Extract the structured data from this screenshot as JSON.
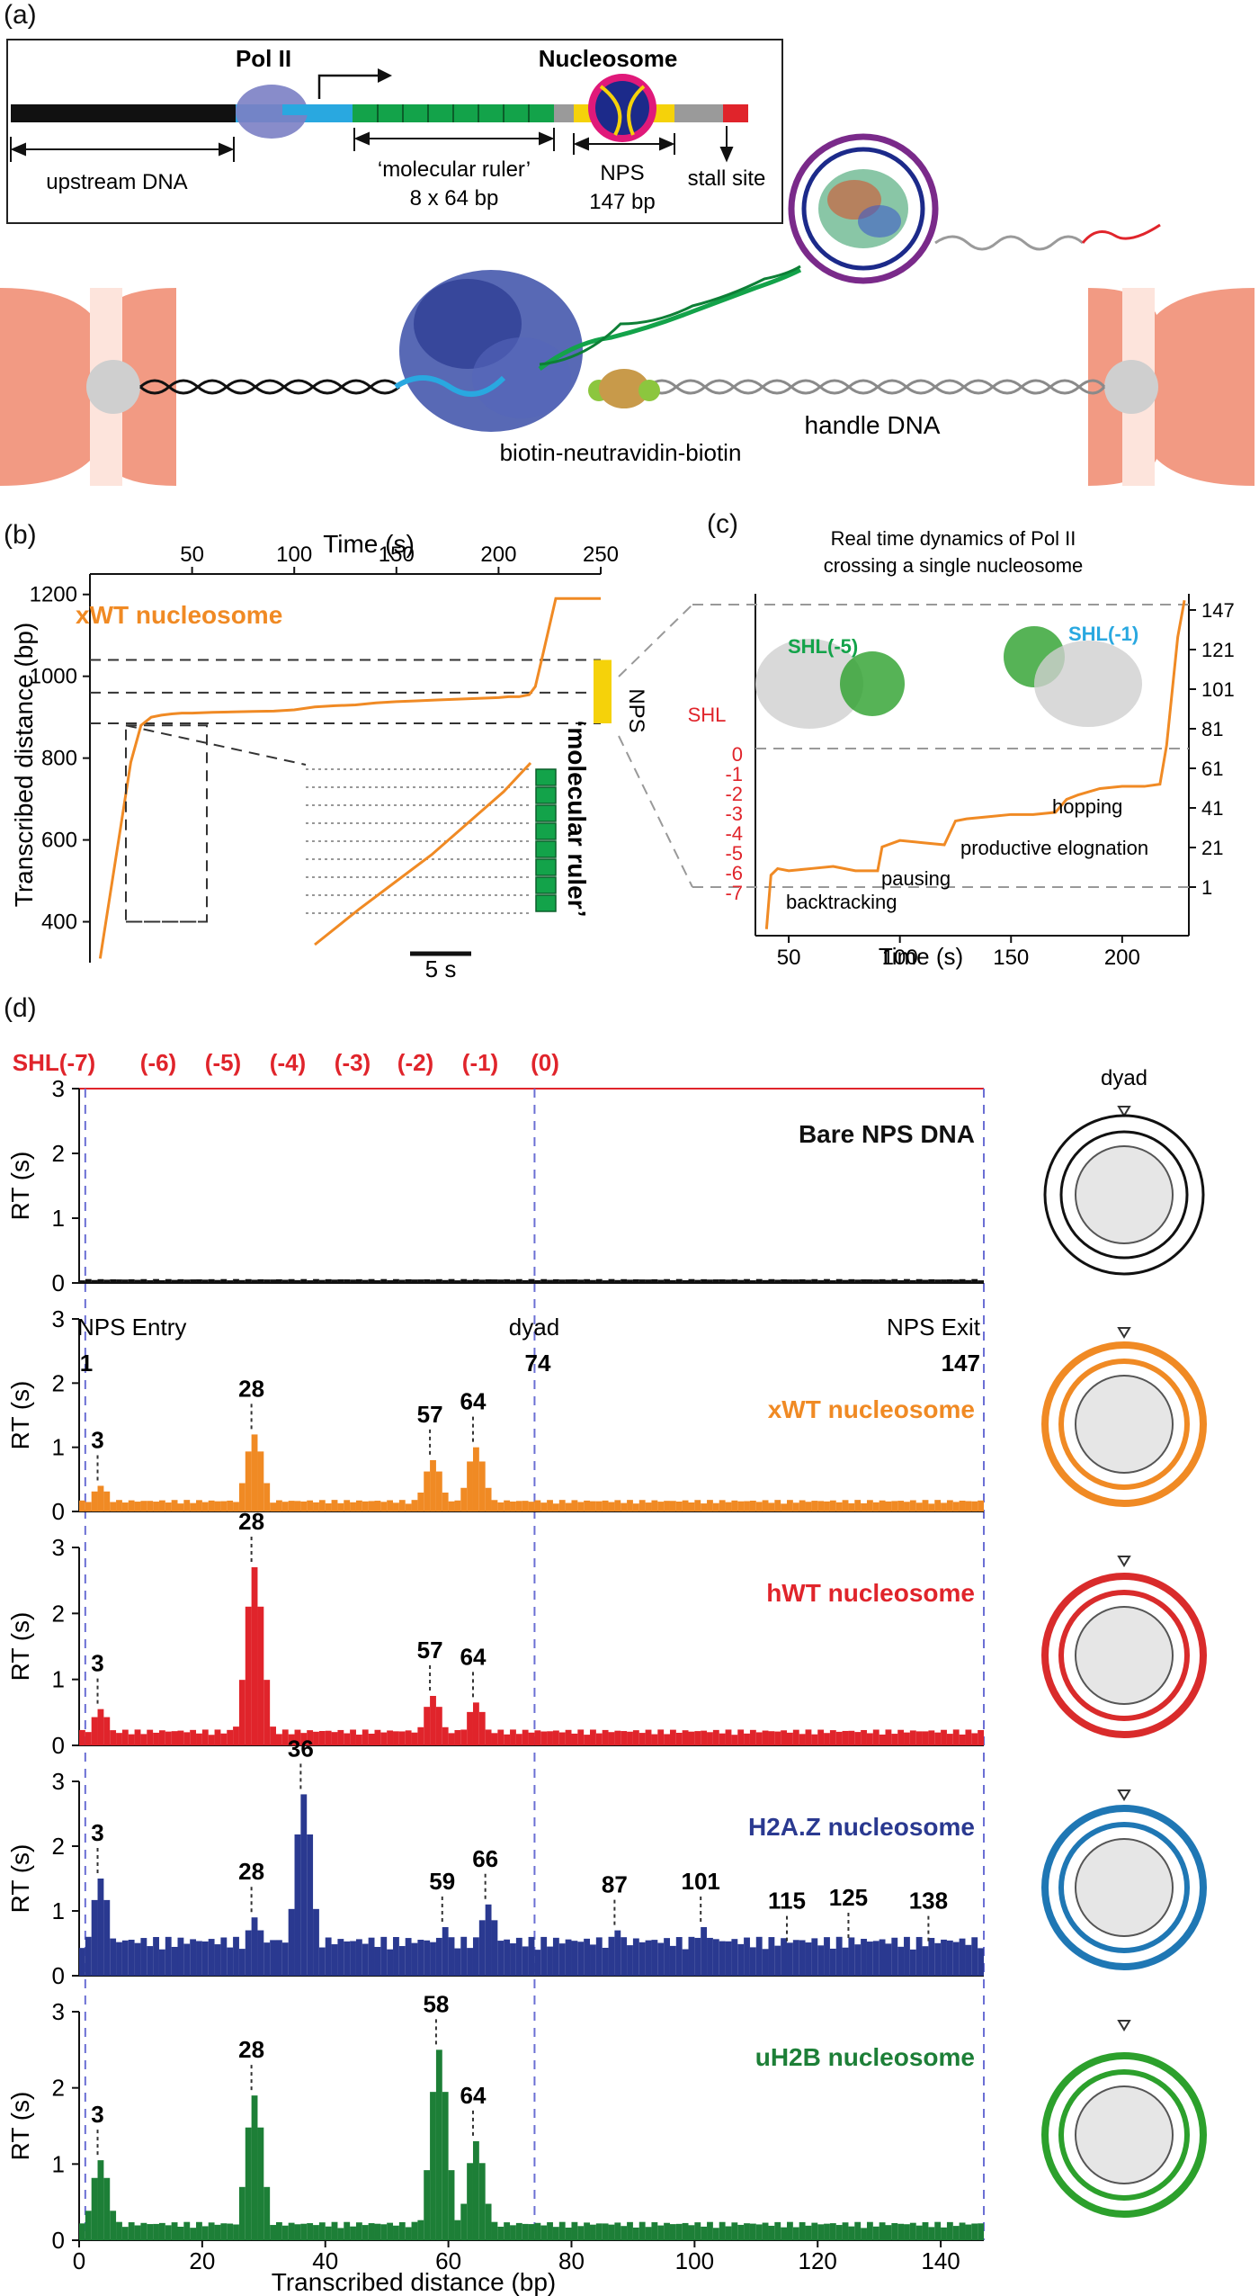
{
  "panels": {
    "a": "(a)",
    "b": "(b)",
    "c": "(c)",
    "d": "(d)"
  },
  "panel_a": {
    "pol2_label": "Pol II",
    "nucleosome_label": "Nucleosome",
    "upstream_dna": "upstream  DNA",
    "ruler_line1": "‘molecular ruler’",
    "ruler_line2": "8 x 64 bp",
    "nps_line1": "NPS",
    "nps_line2": "147 bp",
    "stall_site": "stall site",
    "biotin_label": "biotin-neutravidin-biotin",
    "handle_dna": "handle DNA",
    "colors": {
      "upstream": "#111111",
      "pol": "#7b7fc4",
      "blue": "#29a8e0",
      "ruler": "#13a34a",
      "nps": "#f5d20a",
      "gray": "#9a9a9a",
      "stall": "#e0242b",
      "trap": "#f29a83"
    }
  },
  "panel_b": {
    "xaxis_title": "Time (s)",
    "xticks": [
      "50",
      "100",
      "150",
      "200",
      "250"
    ],
    "yaxis_title": "Transcribed distance (bp)",
    "yticks": [
      "400",
      "600",
      "800",
      "1000",
      "1200"
    ],
    "series_label": "xWT nucleosome",
    "nps_tag": "NPS",
    "scale_bar": "5 s",
    "ruler_tag": "‘molecular ruler’",
    "trace_color": "#f08a24"
  },
  "panel_c": {
    "title_line1": "Real time dynamics of Pol II",
    "title_line2": "crossing a single nucleosome",
    "shl_header": "SHL",
    "shl_ticks": [
      "0",
      "-1",
      "-2",
      "-3",
      "-4",
      "-5",
      "-6",
      "-7"
    ],
    "right_ticks": [
      "147",
      "121",
      "101",
      "81",
      "61",
      "41",
      "21",
      "1"
    ],
    "xticks": [
      "50",
      "100",
      "150",
      "200"
    ],
    "xaxis_title": "Time (s)",
    "shl_m5": "SHL(-5)",
    "shl_m1": "SHL(-1)",
    "ann_backtracking": "backtracking",
    "ann_pausing": "pausing",
    "ann_productive": "productive elognation",
    "ann_hopping": "hopping"
  },
  "panel_d": {
    "shl_labels": [
      "SHL(-7)",
      "(-6)",
      "(-5)",
      "(-4)",
      "(-3)",
      "(-2)",
      "(-1)",
      "(0)"
    ],
    "yaxis_title": "RT (s)",
    "xaxis_title": "Transcribed distance (bp)",
    "xticks": [
      "0",
      "20",
      "40",
      "60",
      "80",
      "100",
      "120",
      "140"
    ],
    "yticks": [
      "0",
      "1",
      "2",
      "3"
    ],
    "nps_entry": "NPS Entry",
    "dyad_text": "dyad",
    "nps_exit": "NPS Exit",
    "entry_num": "1",
    "dyad_num": "74",
    "exit_num": "147",
    "dyad_icon_label": "dyad"
  },
  "chart_data": [
    {
      "type": "line",
      "title": "xWT nucleosome",
      "xlabel": "Time (s)",
      "ylabel": "Transcribed distance (bp)",
      "xlim": [
        0,
        250
      ],
      "ylim": [
        300,
        1250
      ],
      "series": [
        {
          "name": "xWT nucleosome",
          "x": [
            5,
            10,
            15,
            20,
            25,
            30,
            35,
            40,
            45,
            50,
            60,
            70,
            80,
            90,
            100,
            110,
            120,
            130,
            140,
            150,
            160,
            170,
            180,
            190,
            200,
            205,
            210,
            215,
            218,
            222,
            228,
            240,
            250
          ],
          "y": [
            310,
            470,
            630,
            790,
            880,
            900,
            905,
            908,
            910,
            910,
            912,
            913,
            914,
            915,
            918,
            925,
            928,
            930,
            935,
            938,
            940,
            942,
            944,
            946,
            948,
            950,
            950,
            955,
            975,
            1060,
            1190,
            1190,
            1190
          ]
        }
      ],
      "reference_lines": [
        885,
        960,
        1040
      ]
    },
    {
      "type": "line",
      "title": "Real time dynamics of Pol II crossing a single nucleosome",
      "xlabel": "Time (s)",
      "ylabel": "SHL",
      "xlim": [
        35,
        230
      ],
      "ylim": [
        -8,
        150
      ],
      "series": [
        {
          "name": "trace",
          "x": [
            40,
            42,
            45,
            50,
            60,
            70,
            80,
            90,
            92,
            100,
            110,
            120,
            125,
            130,
            140,
            150,
            160,
            170,
            175,
            180,
            190,
            200,
            210,
            217,
            220,
            225,
            228
          ],
          "y": [
            -5,
            20,
            23,
            22,
            23,
            24,
            22,
            22,
            33,
            36,
            35,
            34,
            45,
            46,
            47,
            48,
            48,
            49,
            55,
            57,
            60,
            61,
            61,
            62,
            80,
            130,
            147
          ]
        }
      ],
      "right_axis_bp": [
        1,
        21,
        41,
        61,
        81,
        101,
        121,
        147
      ]
    },
    {
      "type": "bar",
      "title": "Bare NPS DNA",
      "xlabel": "Transcribed distance (bp)",
      "ylabel": "RT (s)",
      "xlim": [
        0,
        147
      ],
      "ylim": [
        0,
        3
      ],
      "baseline": 0.05,
      "peaks": []
    },
    {
      "type": "bar",
      "title": "xWT nucleosome",
      "xlabel": "Transcribed distance (bp)",
      "ylabel": "RT (s)",
      "xlim": [
        0,
        147
      ],
      "ylim": [
        0,
        3
      ],
      "baseline": 0.15,
      "peaks": [
        {
          "x": 3,
          "y": 0.4
        },
        {
          "x": 28,
          "y": 1.2
        },
        {
          "x": 57,
          "y": 0.8
        },
        {
          "x": 64,
          "y": 1.0
        }
      ],
      "annotations": [
        "3",
        "28",
        "57",
        "64"
      ]
    },
    {
      "type": "bar",
      "title": "hWT nucleosome",
      "xlabel": "Transcribed distance (bp)",
      "ylabel": "RT (s)",
      "xlim": [
        0,
        147
      ],
      "ylim": [
        0,
        3
      ],
      "baseline": 0.2,
      "peaks": [
        {
          "x": 3,
          "y": 0.55
        },
        {
          "x": 28,
          "y": 2.7
        },
        {
          "x": 57,
          "y": 0.75
        },
        {
          "x": 64,
          "y": 0.65
        }
      ],
      "annotations": [
        "3",
        "28",
        "57",
        "64"
      ]
    },
    {
      "type": "bar",
      "title": "H2A.Z nucleosome",
      "xlabel": "Transcribed distance (bp)",
      "ylabel": "RT (s)",
      "xlim": [
        0,
        147
      ],
      "ylim": [
        0,
        3
      ],
      "baseline": 0.5,
      "peaks": [
        {
          "x": 3,
          "y": 1.5
        },
        {
          "x": 28,
          "y": 0.9
        },
        {
          "x": 36,
          "y": 2.8
        },
        {
          "x": 59,
          "y": 0.75
        },
        {
          "x": 66,
          "y": 1.1
        },
        {
          "x": 87,
          "y": 0.7
        },
        {
          "x": 101,
          "y": 0.75
        },
        {
          "x": 115,
          "y": 0.45
        },
        {
          "x": 125,
          "y": 0.5
        },
        {
          "x": 138,
          "y": 0.45
        }
      ],
      "annotations": [
        "3",
        "28",
        "36",
        "59",
        "66",
        "87",
        "101",
        "115",
        "125",
        "138"
      ]
    },
    {
      "type": "bar",
      "title": "uH2B nucleosome",
      "xlabel": "Transcribed distance (bp)",
      "ylabel": "RT (s)",
      "xlim": [
        0,
        147
      ],
      "ylim": [
        0,
        3
      ],
      "baseline": 0.2,
      "peaks": [
        {
          "x": 3,
          "y": 1.05
        },
        {
          "x": 28,
          "y": 1.9
        },
        {
          "x": 58,
          "y": 2.5
        },
        {
          "x": 64,
          "y": 1.3
        }
      ],
      "annotations": [
        "3",
        "28",
        "58",
        "64"
      ]
    }
  ],
  "hist_colors": [
    "#111111",
    "#f08a24",
    "#e0242b",
    "#2a3990",
    "#1d7f37"
  ],
  "icon_colors": [
    "#111111",
    "#f08a24",
    "#d92b2b",
    "#1f77b4",
    "#2ca02c"
  ]
}
